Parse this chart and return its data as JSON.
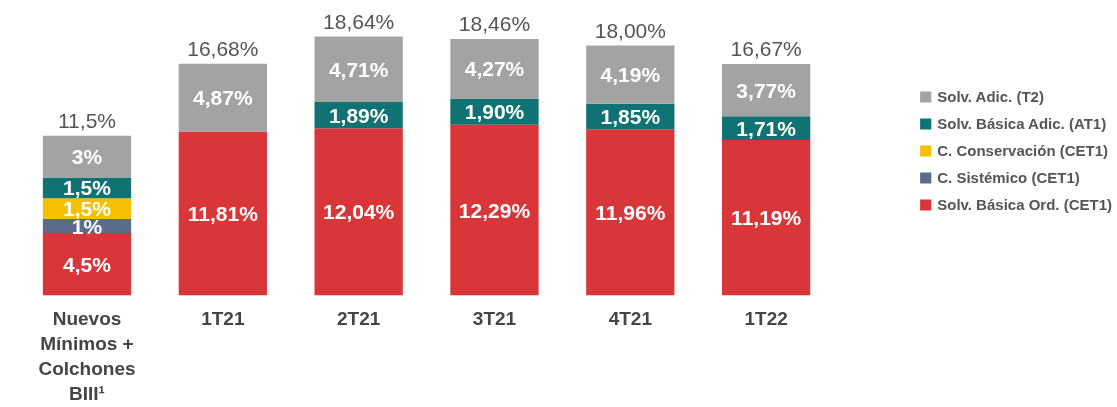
{
  "chart_data": {
    "type": "bar",
    "stacked": true,
    "categories": [
      "Nuevos\nMínimos +\nColchones\nBIII¹",
      "1T21",
      "2T21",
      "3T21",
      "4T21",
      "1T22"
    ],
    "series": [
      {
        "name": "Solv. Básica Ord. (CET1)",
        "color": "#d9363a",
        "values": [
          4.5,
          11.81,
          12.04,
          12.29,
          11.96,
          11.19
        ],
        "value_labels": [
          "4,5%",
          "11,81%",
          "12,04%",
          "12,29%",
          "11,96%",
          "11,19%"
        ]
      },
      {
        "name": "C. Sistémico (CET1)",
        "color": "#5b6b8c",
        "values": [
          1,
          null,
          null,
          null,
          null,
          null
        ],
        "value_labels": [
          "1%",
          null,
          null,
          null,
          null,
          null
        ]
      },
      {
        "name": "C. Conservación (CET1)",
        "color": "#f5c000",
        "values": [
          1.5,
          null,
          null,
          null,
          null,
          null
        ],
        "value_labels": [
          "1,5%",
          null,
          null,
          null,
          null,
          null
        ]
      },
      {
        "name": "Solv. Básica Adic. (AT1)",
        "color": "#107272",
        "values": [
          1.5,
          null,
          1.89,
          1.9,
          1.85,
          1.71
        ],
        "value_labels": [
          "1,5%",
          null,
          "1,89%",
          "1,90%",
          "1,85%",
          "1,71%"
        ]
      },
      {
        "name": "Solv. Adic. (T2)",
        "color": "#a3a3a3",
        "values": [
          3,
          4.87,
          4.71,
          4.27,
          4.19,
          3.77
        ],
        "value_labels": [
          "3%",
          "4,87%",
          "4,71%",
          "4,27%",
          "4,19%",
          "3,77%"
        ]
      }
    ],
    "totals": [
      "11,5%",
      "16,68%",
      "18,64%",
      "18,46%",
      "18,00%",
      "16,67%"
    ],
    "legend": "right",
    "grid": false
  }
}
